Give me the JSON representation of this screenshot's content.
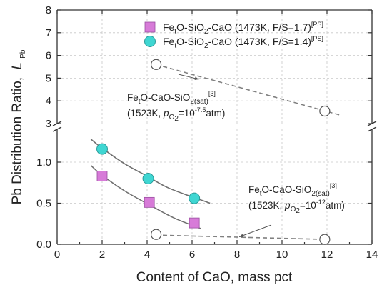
{
  "chart_data": {
    "type": "scatter",
    "xlabel": "Content of CaO, mass pct",
    "ylabel": "Pb Distribution Ratio,",
    "ylabel_symbol": "L",
    "ylabel_sub": "Pb",
    "xlim": [
      0,
      14
    ],
    "x_ticks": [
      "0",
      "2",
      "4",
      "6",
      "8",
      "10",
      "12",
      "14"
    ],
    "y_axis_break": true,
    "upper_panel": {
      "ylim": [
        3,
        8
      ],
      "y_ticks": [
        "3",
        "4",
        "5",
        "6",
        "7",
        "8"
      ]
    },
    "lower_panel": {
      "ylim": [
        0,
        1.4
      ],
      "y_ticks": [
        "0.0",
        "0.5",
        "1.0"
      ]
    },
    "grid": "dashed",
    "legend_position": "top-right",
    "series": [
      {
        "name_main": "Fe",
        "name_sub": "t",
        "name_mid": "O-SiO",
        "name_sub2": "2",
        "name_tail": "-CaO (1473K, F/S=1.7)",
        "name_ref": "[PS]",
        "marker": "square",
        "color": "#d77bd8",
        "panel": "lower",
        "points": [
          {
            "x": 2.0,
            "y": 0.83
          },
          {
            "x": 4.1,
            "y": 0.51
          },
          {
            "x": 6.1,
            "y": 0.26
          }
        ],
        "trend": [
          {
            "x": 1.5,
            "y": 0.96
          },
          {
            "x": 2.0,
            "y": 0.84
          },
          {
            "x": 3.0,
            "y": 0.65
          },
          {
            "x": 4.1,
            "y": 0.48
          },
          {
            "x": 5.2,
            "y": 0.32
          },
          {
            "x": 6.4,
            "y": 0.19
          }
        ]
      },
      {
        "name_main": "Fe",
        "name_sub": "t",
        "name_mid": "O-SiO",
        "name_sub2": "2",
        "name_tail": "-CaO (1473K, F/S=1.4)",
        "name_ref": "[PS]",
        "marker": "circle",
        "color": "#3fd6d2",
        "panel": "lower",
        "points": [
          {
            "x": 2.0,
            "y": 1.16
          },
          {
            "x": 4.05,
            "y": 0.8
          },
          {
            "x": 6.1,
            "y": 0.56
          }
        ],
        "trend": [
          {
            "x": 1.5,
            "y": 1.28
          },
          {
            "x": 2.0,
            "y": 1.17
          },
          {
            "x": 3.0,
            "y": 0.98
          },
          {
            "x": 4.0,
            "y": 0.83
          },
          {
            "x": 5.0,
            "y": 0.68
          },
          {
            "x": 6.8,
            "y": 0.5
          }
        ]
      },
      {
        "marker": "open-circle",
        "panel": "upper",
        "points": [
          {
            "x": 4.4,
            "y": 5.6
          },
          {
            "x": 11.9,
            "y": 3.55
          }
        ],
        "trend_dashed": [
          {
            "x": 4.4,
            "y": 5.6
          },
          {
            "x": 12.6,
            "y": 3.37
          }
        ]
      },
      {
        "marker": "open-circle",
        "panel": "lower",
        "points": [
          {
            "x": 4.4,
            "y": 0.12
          },
          {
            "x": 11.9,
            "y": 0.06
          }
        ],
        "trend_dashed": [
          {
            "x": 4.7,
            "y": 0.11
          },
          {
            "x": 11.9,
            "y": 0.06
          }
        ]
      }
    ],
    "annotations": [
      {
        "panel": "upper",
        "line1_main": "Fe",
        "line1_sub": "t",
        "line1_tail": "O-CaO-SiO",
        "line1_sub2": "2(sat)",
        "line1_ref": "[3]",
        "line2_head": "(1523K, ",
        "line2_p": "p",
        "line2_psub": "O",
        "line2_psub2": "2",
        "line2_eq": "=10",
        "line2_exp": "-7.5",
        "line2_tail": "atm)",
        "arrow_to": {
          "x": 6.3,
          "y": 4.95
        }
      },
      {
        "panel": "lower",
        "line1_main": "Fe",
        "line1_sub": "t",
        "line1_tail": "O-CaO-SiO",
        "line1_sub2": "2(sat)",
        "line1_ref": "[3]",
        "line2_head": "(1523K, ",
        "line2_p": "p",
        "line2_psub": "O",
        "line2_psub2": "2",
        "line2_eq": "=10",
        "line2_exp": "-12",
        "line2_tail": "atm)",
        "arrow_to": {
          "x": 8.1,
          "y": 0.09
        }
      }
    ]
  }
}
